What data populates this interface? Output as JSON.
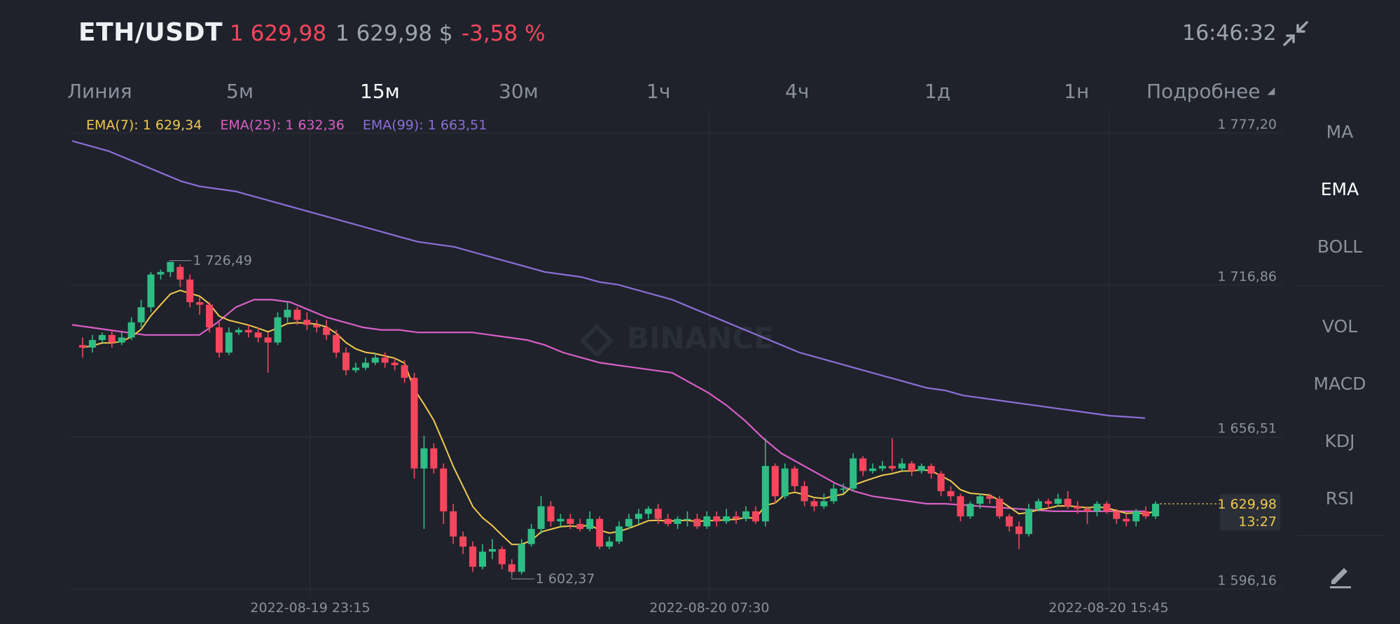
{
  "header": {
    "pair": "ETH/USDT",
    "last_price": "1 629,98",
    "usd_price": "1 629,98 $",
    "change": "-3,58 %",
    "time": "16:46:32",
    "collapse_icon": "collapse-arrows-icon"
  },
  "timeframes": {
    "items": [
      "Линия",
      "5м",
      "15м",
      "30м",
      "1ч",
      "4ч",
      "1д",
      "1н"
    ],
    "active": "15м",
    "more": "Подробнее"
  },
  "legend": {
    "ema7": "EMA(7): 1 629,34",
    "ema25": "EMA(25): 1 632,36",
    "ema99": "EMA(99): 1 663,51"
  },
  "colors": {
    "up": "#2ebd85",
    "down": "#f6465d",
    "ema7": "#f0c94e",
    "ema25": "#d95fc6",
    "ema99": "#8c6fd8"
  },
  "indicators": {
    "items": [
      "MA",
      "EMA",
      "BOLL",
      "VOL",
      "MACD",
      "KDJ",
      "RSI"
    ],
    "active": "EMA",
    "edit_icon": "pencil-icon"
  },
  "chart_data": {
    "type": "candlestick",
    "watermark": "BINANCE",
    "y_axis_ticks": [
      "1 777,20",
      "1 716,86",
      "1 656,51",
      "1 596,16"
    ],
    "y_axis_values": [
      1777.2,
      1716.86,
      1656.51,
      1596.16
    ],
    "x_axis_ticks": [
      "2022-08-19 23:15",
      "2022-08-20 07:30",
      "2022-08-20 15:45"
    ],
    "high_label": "1 726,49",
    "low_label": "1 602,37",
    "current_price_label": "1 629,98",
    "countdown_label": "13:27",
    "candles": [
      [
        1693,
        1692,
        1696,
        1688
      ],
      [
        1692,
        1695,
        1697,
        1690
      ],
      [
        1695,
        1697,
        1698,
        1694
      ],
      [
        1697,
        1694,
        1699,
        1692
      ],
      [
        1694,
        1696,
        1698,
        1693
      ],
      [
        1696,
        1702,
        1704,
        1695
      ],
      [
        1702,
        1708,
        1711,
        1700
      ],
      [
        1708,
        1721,
        1722,
        1706
      ],
      [
        1721,
        1722,
        1723,
        1719
      ],
      [
        1722,
        1726,
        1726,
        1720
      ],
      [
        1724,
        1719,
        1725,
        1716
      ],
      [
        1719,
        1710,
        1721,
        1708
      ],
      [
        1710,
        1709,
        1712,
        1705
      ],
      [
        1709,
        1700,
        1710,
        1698
      ],
      [
        1700,
        1690,
        1702,
        1688
      ],
      [
        1690,
        1698,
        1700,
        1689
      ],
      [
        1698,
        1699,
        1700,
        1697
      ],
      [
        1699,
        1698,
        1701,
        1696
      ],
      [
        1698,
        1696,
        1700,
        1694
      ],
      [
        1696,
        1694,
        1698,
        1682
      ],
      [
        1694,
        1704,
        1706,
        1693
      ],
      [
        1704,
        1707,
        1710,
        1702
      ],
      [
        1707,
        1703,
        1708,
        1701
      ],
      [
        1703,
        1701,
        1706,
        1699
      ],
      [
        1701,
        1700,
        1703,
        1698
      ],
      [
        1700,
        1697,
        1703,
        1695
      ],
      [
        1697,
        1690,
        1699,
        1688
      ],
      [
        1690,
        1683,
        1692,
        1681
      ],
      [
        1683,
        1684,
        1686,
        1682
      ],
      [
        1684,
        1686,
        1688,
        1683
      ],
      [
        1686,
        1688,
        1690,
        1685
      ],
      [
        1688,
        1686,
        1690,
        1684
      ],
      [
        1686,
        1685,
        1688,
        1683
      ],
      [
        1685,
        1680,
        1687,
        1678
      ],
      [
        1680,
        1644,
        1682,
        1640
      ],
      [
        1644,
        1652,
        1657,
        1620
      ],
      [
        1652,
        1644,
        1654,
        1642
      ],
      [
        1644,
        1627,
        1646,
        1622
      ],
      [
        1627,
        1617,
        1630,
        1614
      ],
      [
        1617,
        1613,
        1619,
        1610
      ],
      [
        1613,
        1605,
        1615,
        1603
      ],
      [
        1605,
        1611,
        1614,
        1604
      ],
      [
        1611,
        1612,
        1616,
        1608
      ],
      [
        1612,
        1606,
        1613,
        1604
      ],
      [
        1606,
        1603,
        1608,
        1602
      ],
      [
        1603,
        1614,
        1616,
        1602
      ],
      [
        1614,
        1620,
        1622,
        1613
      ],
      [
        1620,
        1629,
        1633,
        1618
      ],
      [
        1629,
        1623,
        1631,
        1621
      ],
      [
        1623,
        1624,
        1626,
        1621
      ],
      [
        1624,
        1622,
        1626,
        1620
      ],
      [
        1622,
        1620,
        1624,
        1619
      ],
      [
        1620,
        1624,
        1627,
        1619
      ],
      [
        1624,
        1613,
        1625,
        1612
      ],
      [
        1613,
        1615,
        1617,
        1612
      ],
      [
        1615,
        1621,
        1623,
        1614
      ],
      [
        1621,
        1624,
        1626,
        1620
      ],
      [
        1624,
        1626,
        1628,
        1622
      ],
      [
        1626,
        1628,
        1629,
        1624
      ],
      [
        1628,
        1624,
        1630,
        1622
      ],
      [
        1624,
        1622,
        1626,
        1621
      ],
      [
        1622,
        1624,
        1625,
        1620
      ],
      [
        1624,
        1624,
        1627,
        1621
      ],
      [
        1624,
        1621,
        1626,
        1620
      ],
      [
        1621,
        1625,
        1627,
        1620
      ],
      [
        1625,
        1623,
        1627,
        1621
      ],
      [
        1623,
        1625,
        1628,
        1622
      ],
      [
        1625,
        1624,
        1627,
        1622
      ],
      [
        1624,
        1627,
        1629,
        1623
      ],
      [
        1627,
        1623,
        1629,
        1622
      ],
      [
        1623,
        1645,
        1656,
        1621
      ],
      [
        1645,
        1633,
        1646,
        1630
      ],
      [
        1633,
        1644,
        1646,
        1632
      ],
      [
        1644,
        1637,
        1645,
        1635
      ],
      [
        1637,
        1631,
        1639,
        1629
      ],
      [
        1631,
        1629,
        1632,
        1627
      ],
      [
        1629,
        1631,
        1634,
        1628
      ],
      [
        1631,
        1636,
        1638,
        1630
      ],
      [
        1636,
        1636,
        1638,
        1634
      ],
      [
        1636,
        1648,
        1650,
        1635
      ],
      [
        1648,
        1643,
        1649,
        1641
      ],
      [
        1643,
        1644,
        1646,
        1642
      ],
      [
        1644,
        1645,
        1647,
        1643
      ],
      [
        1645,
        1644,
        1656,
        1643
      ],
      [
        1644,
        1646,
        1648,
        1643
      ],
      [
        1646,
        1643,
        1647,
        1641
      ],
      [
        1643,
        1645,
        1646,
        1642
      ],
      [
        1645,
        1642,
        1646,
        1640
      ],
      [
        1642,
        1635,
        1643,
        1633
      ],
      [
        1635,
        1633,
        1637,
        1631
      ],
      [
        1633,
        1625,
        1634,
        1623
      ],
      [
        1625,
        1630,
        1631,
        1624
      ],
      [
        1630,
        1633,
        1634,
        1628
      ],
      [
        1633,
        1632,
        1634,
        1630
      ],
      [
        1632,
        1625,
        1633,
        1624
      ],
      [
        1625,
        1621,
        1626,
        1619
      ],
      [
        1621,
        1618,
        1623,
        1612
      ],
      [
        1618,
        1628,
        1630,
        1617
      ],
      [
        1628,
        1631,
        1632,
        1627
      ],
      [
        1631,
        1630,
        1632,
        1628
      ],
      [
        1630,
        1632,
        1634,
        1629
      ],
      [
        1632,
        1629,
        1635,
        1628
      ],
      [
        1629,
        1628,
        1631,
        1626
      ],
      [
        1628,
        1627,
        1629,
        1622
      ],
      [
        1627,
        1630,
        1631,
        1625
      ],
      [
        1630,
        1627,
        1631,
        1626
      ],
      [
        1627,
        1624,
        1628,
        1622
      ],
      [
        1624,
        1623,
        1626,
        1621
      ],
      [
        1623,
        1627,
        1628,
        1621
      ],
      [
        1627,
        1625,
        1629,
        1624
      ],
      [
        1625,
        1630,
        1631,
        1624
      ]
    ],
    "ema99": [
      1774,
      1772,
      1770,
      1767,
      1764,
      1761,
      1758,
      1756,
      1755,
      1754,
      1752,
      1750,
      1748,
      1746,
      1744,
      1742,
      1740,
      1738,
      1736,
      1734,
      1733,
      1732,
      1730,
      1728,
      1726,
      1724,
      1722,
      1721,
      1720,
      1718,
      1717,
      1715,
      1713,
      1711,
      1708,
      1705,
      1702,
      1699,
      1696,
      1693,
      1690,
      1688,
      1686,
      1684,
      1682,
      1680,
      1678,
      1676,
      1675,
      1673,
      1672,
      1671,
      1670,
      1669,
      1668,
      1667,
      1666,
      1665,
      1664.5,
      1664
    ],
    "ema25": [
      1701,
      1700,
      1699,
      1698,
      1697,
      1697,
      1697,
      1697,
      1702,
      1708,
      1711,
      1711,
      1710,
      1707,
      1704,
      1702,
      1700,
      1699,
      1699,
      1698,
      1698,
      1698,
      1698,
      1697,
      1696,
      1695,
      1693,
      1690,
      1688,
      1686,
      1685,
      1684,
      1683,
      1682,
      1678,
      1674,
      1669,
      1663,
      1656,
      1650,
      1646,
      1642,
      1638,
      1635,
      1633,
      1632,
      1631,
      1630,
      1630,
      1629.5,
      1629,
      1628.5,
      1628,
      1627.5,
      1627,
      1627,
      1627,
      1627,
      1627,
      1627
    ]
  }
}
